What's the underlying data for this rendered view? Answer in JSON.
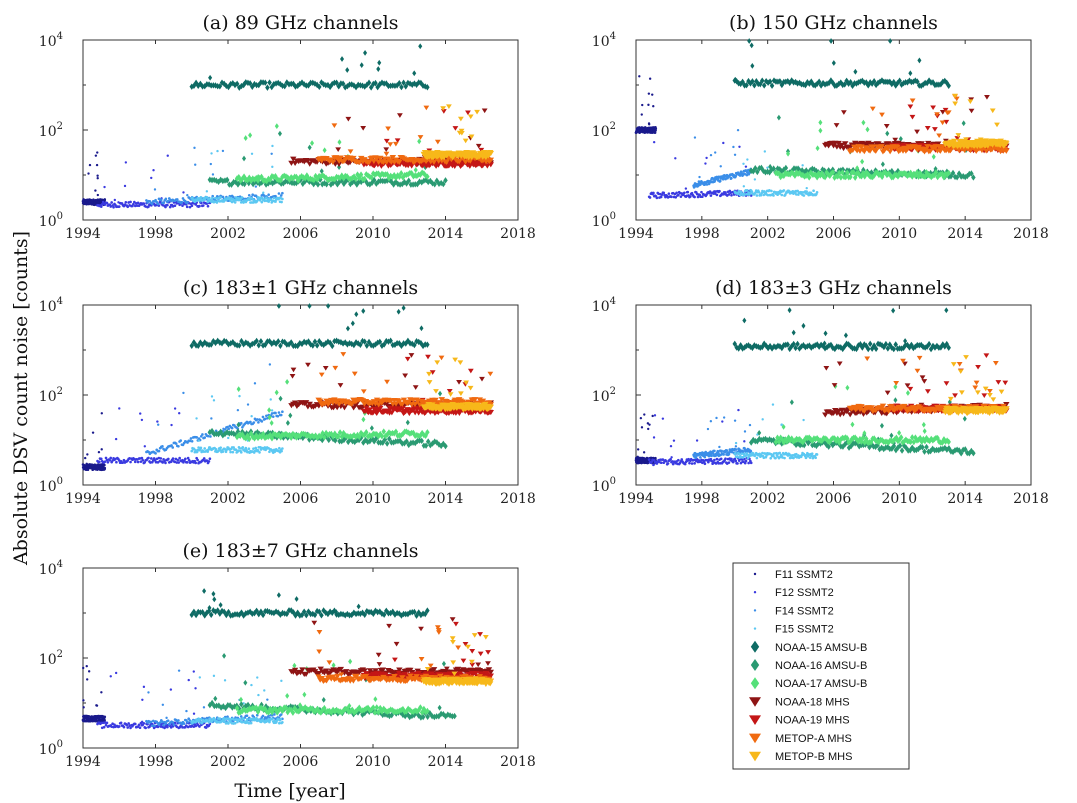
{
  "figure": {
    "ylabel": "Absolute DSV count noise [counts]",
    "xlabel": "Time [year]"
  },
  "legend": {
    "placement": "bottom-right",
    "entries": [
      {
        "label": "F11 SSMT2",
        "color": "#1a1a8c",
        "marker": "dot"
      },
      {
        "label": "F12 SSMT2",
        "color": "#3a3ae0",
        "marker": "dot"
      },
      {
        "label": "F14 SSMT2",
        "color": "#3b8ee8",
        "marker": "dot"
      },
      {
        "label": "F15 SSMT2",
        "color": "#5cc8f2",
        "marker": "dot"
      },
      {
        "label": "NOAA-15 AMSU-B",
        "color": "#0e6b64",
        "marker": "diamond"
      },
      {
        "label": "NOAA-16 AMSU-B",
        "color": "#2a9a72",
        "marker": "diamond"
      },
      {
        "label": "NOAA-17 AMSU-B",
        "color": "#55e07a",
        "marker": "diamond"
      },
      {
        "label": "NOAA-18 MHS",
        "color": "#8e1414",
        "marker": "triangle"
      },
      {
        "label": "NOAA-19 MHS",
        "color": "#c41616",
        "marker": "triangle"
      },
      {
        "label": "METOP-A MHS",
        "color": "#f06a10",
        "marker": "triangle"
      },
      {
        "label": "METOP-B MHS",
        "color": "#f7b81a",
        "marker": "triangle"
      }
    ]
  },
  "chart_data": [
    {
      "type": "scatter",
      "title": "(a) 89 GHz channels",
      "xlim": [
        1994,
        2018
      ],
      "ylim": [
        1,
        10000
      ],
      "yscale": "log",
      "xticks": [
        "1994",
        "1998",
        "2002",
        "2006",
        "2010",
        "2014",
        "2018"
      ],
      "grid": false,
      "series": [
        {
          "name": "F11 SSMT2",
          "x": [
            1994.0,
            1995.2
          ],
          "y": [
            2.5,
            2.5
          ]
        },
        {
          "name": "F12 SSMT2",
          "x": [
            1994.8,
            2001.0
          ],
          "y": [
            2.2,
            2.2
          ]
        },
        {
          "name": "F14 SSMT2",
          "x": [
            1997.5,
            2005.0
          ],
          "y": [
            2.5,
            3.5
          ]
        },
        {
          "name": "F15 SSMT2",
          "x": [
            2000.0,
            2005.0
          ],
          "y": [
            2.8,
            2.8
          ]
        },
        {
          "name": "NOAA-15 AMSU-B",
          "x": [
            2000.0,
            2013.0
          ],
          "y": [
            1000,
            1000
          ]
        },
        {
          "name": "NOAA-16 AMSU-B",
          "x": [
            2001.0,
            2014.0
          ],
          "y": [
            7,
            7
          ]
        },
        {
          "name": "NOAA-17 AMSU-B",
          "x": [
            2002.5,
            2013.0
          ],
          "y": [
            8,
            10
          ]
        },
        {
          "name": "NOAA-18 MHS",
          "x": [
            2005.5,
            2016.5
          ],
          "y": [
            20,
            20
          ]
        },
        {
          "name": "NOAA-19 MHS",
          "x": [
            2009.5,
            2016.5
          ],
          "y": [
            18,
            18
          ]
        },
        {
          "name": "METOP-A MHS",
          "x": [
            2007.0,
            2016.5
          ],
          "y": [
            22,
            22
          ]
        },
        {
          "name": "METOP-B MHS",
          "x": [
            2012.8,
            2016.5
          ],
          "y": [
            28,
            28
          ]
        }
      ]
    },
    {
      "type": "scatter",
      "title": "(b) 150 GHz channels",
      "xlim": [
        1994,
        2018
      ],
      "ylim": [
        1,
        10000
      ],
      "yscale": "log",
      "xticks": [
        "1994",
        "1998",
        "2002",
        "2006",
        "2010",
        "2014",
        "2018"
      ],
      "grid": false,
      "series": [
        {
          "name": "F11 SSMT2",
          "x": [
            1994.0,
            1995.2
          ],
          "y": [
            100,
            100
          ]
        },
        {
          "name": "F12 SSMT2",
          "x": [
            1994.8,
            2001.0
          ],
          "y": [
            3.5,
            4
          ]
        },
        {
          "name": "F14 SSMT2",
          "x": [
            1997.5,
            2001.0
          ],
          "y": [
            6,
            12
          ]
        },
        {
          "name": "F15 SSMT2",
          "x": [
            2000.0,
            2005.0
          ],
          "y": [
            4,
            4
          ]
        },
        {
          "name": "NOAA-15 AMSU-B",
          "x": [
            2000.0,
            2013.0
          ],
          "y": [
            1100,
            1100
          ]
        },
        {
          "name": "NOAA-16 AMSU-B",
          "x": [
            2001.0,
            2014.5
          ],
          "y": [
            13,
            10
          ]
        },
        {
          "name": "NOAA-17 AMSU-B",
          "x": [
            2002.5,
            2013.0
          ],
          "y": [
            10,
            10
          ]
        },
        {
          "name": "NOAA-18 MHS",
          "x": [
            2005.5,
            2016.5
          ],
          "y": [
            45,
            45
          ]
        },
        {
          "name": "NOAA-19 MHS",
          "x": [
            2009.5,
            2016.5
          ],
          "y": [
            40,
            40
          ]
        },
        {
          "name": "METOP-A MHS",
          "x": [
            2007.0,
            2016.5
          ],
          "y": [
            38,
            38
          ]
        },
        {
          "name": "METOP-B MHS",
          "x": [
            2012.8,
            2016.5
          ],
          "y": [
            50,
            50
          ]
        }
      ]
    },
    {
      "type": "scatter",
      "title": "(c) 183±1 GHz channels",
      "xlim": [
        1994,
        2018
      ],
      "ylim": [
        1,
        10000
      ],
      "yscale": "log",
      "xticks": [
        "1994",
        "1998",
        "2002",
        "2006",
        "2010",
        "2014",
        "2018"
      ],
      "grid": false,
      "series": [
        {
          "name": "F11 SSMT2",
          "x": [
            1994.0,
            1995.2
          ],
          "y": [
            2.5,
            2.5
          ]
        },
        {
          "name": "F12 SSMT2",
          "x": [
            1994.8,
            2001.0
          ],
          "y": [
            3.5,
            3.5
          ]
        },
        {
          "name": "F14 SSMT2",
          "x": [
            1997.5,
            2005.0
          ],
          "y": [
            5,
            40
          ]
        },
        {
          "name": "F15 SSMT2",
          "x": [
            2000.0,
            2005.0
          ],
          "y": [
            6,
            6
          ]
        },
        {
          "name": "NOAA-15 AMSU-B",
          "x": [
            2000.0,
            2013.0
          ],
          "y": [
            1400,
            1400
          ]
        },
        {
          "name": "NOAA-16 AMSU-B",
          "x": [
            2001.0,
            2014.0
          ],
          "y": [
            15,
            8
          ]
        },
        {
          "name": "NOAA-17 AMSU-B",
          "x": [
            2002.5,
            2013.0
          ],
          "y": [
            12,
            14
          ]
        },
        {
          "name": "NOAA-18 MHS",
          "x": [
            2005.5,
            2016.5
          ],
          "y": [
            60,
            60
          ]
        },
        {
          "name": "NOAA-19 MHS",
          "x": [
            2009.5,
            2016.5
          ],
          "y": [
            45,
            45
          ]
        },
        {
          "name": "METOP-A MHS",
          "x": [
            2007.0,
            2016.5
          ],
          "y": [
            70,
            70
          ]
        },
        {
          "name": "METOP-B MHS",
          "x": [
            2012.8,
            2016.5
          ],
          "y": [
            55,
            55
          ]
        }
      ]
    },
    {
      "type": "scatter",
      "title": "(d) 183±3 GHz channels",
      "xlim": [
        1994,
        2018
      ],
      "ylim": [
        1,
        10000
      ],
      "yscale": "log",
      "xticks": [
        "1994",
        "1998",
        "2002",
        "2006",
        "2010",
        "2014",
        "2018"
      ],
      "grid": false,
      "series": [
        {
          "name": "F11 SSMT2",
          "x": [
            1994.0,
            1995.2
          ],
          "y": [
            3.5,
            3.5
          ]
        },
        {
          "name": "F12 SSMT2",
          "x": [
            1994.8,
            2001.0
          ],
          "y": [
            3.2,
            3.5
          ]
        },
        {
          "name": "F14 SSMT2",
          "x": [
            1997.5,
            2001.0
          ],
          "y": [
            4.5,
            6
          ]
        },
        {
          "name": "F15 SSMT2",
          "x": [
            2000.0,
            2005.0
          ],
          "y": [
            4.5,
            4.5
          ]
        },
        {
          "name": "NOAA-15 AMSU-B",
          "x": [
            2000.0,
            2013.0
          ],
          "y": [
            1200,
            1200
          ]
        },
        {
          "name": "NOAA-16 AMSU-B",
          "x": [
            2001.0,
            2014.5
          ],
          "y": [
            10,
            5.5
          ]
        },
        {
          "name": "NOAA-17 AMSU-B",
          "x": [
            2002.5,
            2013.0
          ],
          "y": [
            10,
            10
          ]
        },
        {
          "name": "NOAA-18 MHS",
          "x": [
            2005.5,
            2016.5
          ],
          "y": [
            40,
            55
          ]
        },
        {
          "name": "NOAA-19 MHS",
          "x": [
            2009.5,
            2016.5
          ],
          "y": [
            50,
            50
          ]
        },
        {
          "name": "METOP-A MHS",
          "x": [
            2007.0,
            2016.5
          ],
          "y": [
            50,
            50
          ]
        },
        {
          "name": "METOP-B MHS",
          "x": [
            2012.8,
            2016.5
          ],
          "y": [
            45,
            45
          ]
        }
      ]
    },
    {
      "type": "scatter",
      "title": "(e) 183±7 GHz channels",
      "xlim": [
        1994,
        2018
      ],
      "ylim": [
        1,
        10000
      ],
      "yscale": "log",
      "xticks": [
        "1994",
        "1998",
        "2002",
        "2006",
        "2010",
        "2014",
        "2018"
      ],
      "grid": false,
      "series": [
        {
          "name": "F11 SSMT2",
          "x": [
            1994.0,
            1995.2
          ],
          "y": [
            4.5,
            4.5
          ]
        },
        {
          "name": "F12 SSMT2",
          "x": [
            1994.8,
            2001.0
          ],
          "y": [
            3.2,
            3.2
          ]
        },
        {
          "name": "F14 SSMT2",
          "x": [
            1997.5,
            2005.0
          ],
          "y": [
            3.5,
            5
          ]
        },
        {
          "name": "F15 SSMT2",
          "x": [
            2000.0,
            2005.0
          ],
          "y": [
            4,
            4
          ]
        },
        {
          "name": "NOAA-15 AMSU-B",
          "x": [
            2000.0,
            2013.0
          ],
          "y": [
            1000,
            1000
          ]
        },
        {
          "name": "NOAA-16 AMSU-B",
          "x": [
            2001.0,
            2014.5
          ],
          "y": [
            9,
            5
          ]
        },
        {
          "name": "NOAA-17 AMSU-B",
          "x": [
            2002.5,
            2013.0
          ],
          "y": [
            7,
            7
          ]
        },
        {
          "name": "NOAA-18 MHS",
          "x": [
            2005.5,
            2016.5
          ],
          "y": [
            50,
            50
          ]
        },
        {
          "name": "NOAA-19 MHS",
          "x": [
            2009.5,
            2016.5
          ],
          "y": [
            40,
            40
          ]
        },
        {
          "name": "METOP-A MHS",
          "x": [
            2007.0,
            2016.5
          ],
          "y": [
            35,
            35
          ]
        },
        {
          "name": "METOP-B MHS",
          "x": [
            2012.8,
            2016.5
          ],
          "y": [
            30,
            30
          ]
        }
      ]
    }
  ]
}
